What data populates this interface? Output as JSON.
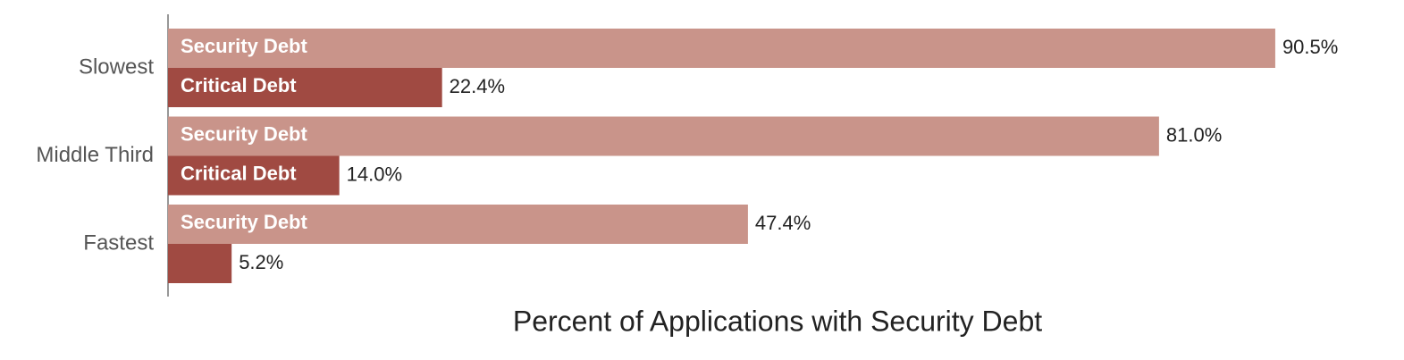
{
  "chart_data": {
    "type": "bar",
    "orientation": "horizontal",
    "x_label": "Percent of Applications with Security Debt",
    "categories": [
      "Slowest",
      "Middle Third",
      "Fastest"
    ],
    "series": [
      {
        "name": "Security Debt",
        "color": "#c9948a",
        "values": [
          90.5,
          81.0,
          47.4
        ],
        "value_labels": [
          "90.5%",
          "81.0%",
          "47.4%"
        ]
      },
      {
        "name": "Critical Debt",
        "color": "#a04a42",
        "values": [
          22.4,
          14.0,
          5.2
        ],
        "value_labels": [
          "22.4%",
          "14.0%",
          "5.2%"
        ]
      }
    ],
    "xlim": [
      0,
      100
    ]
  }
}
